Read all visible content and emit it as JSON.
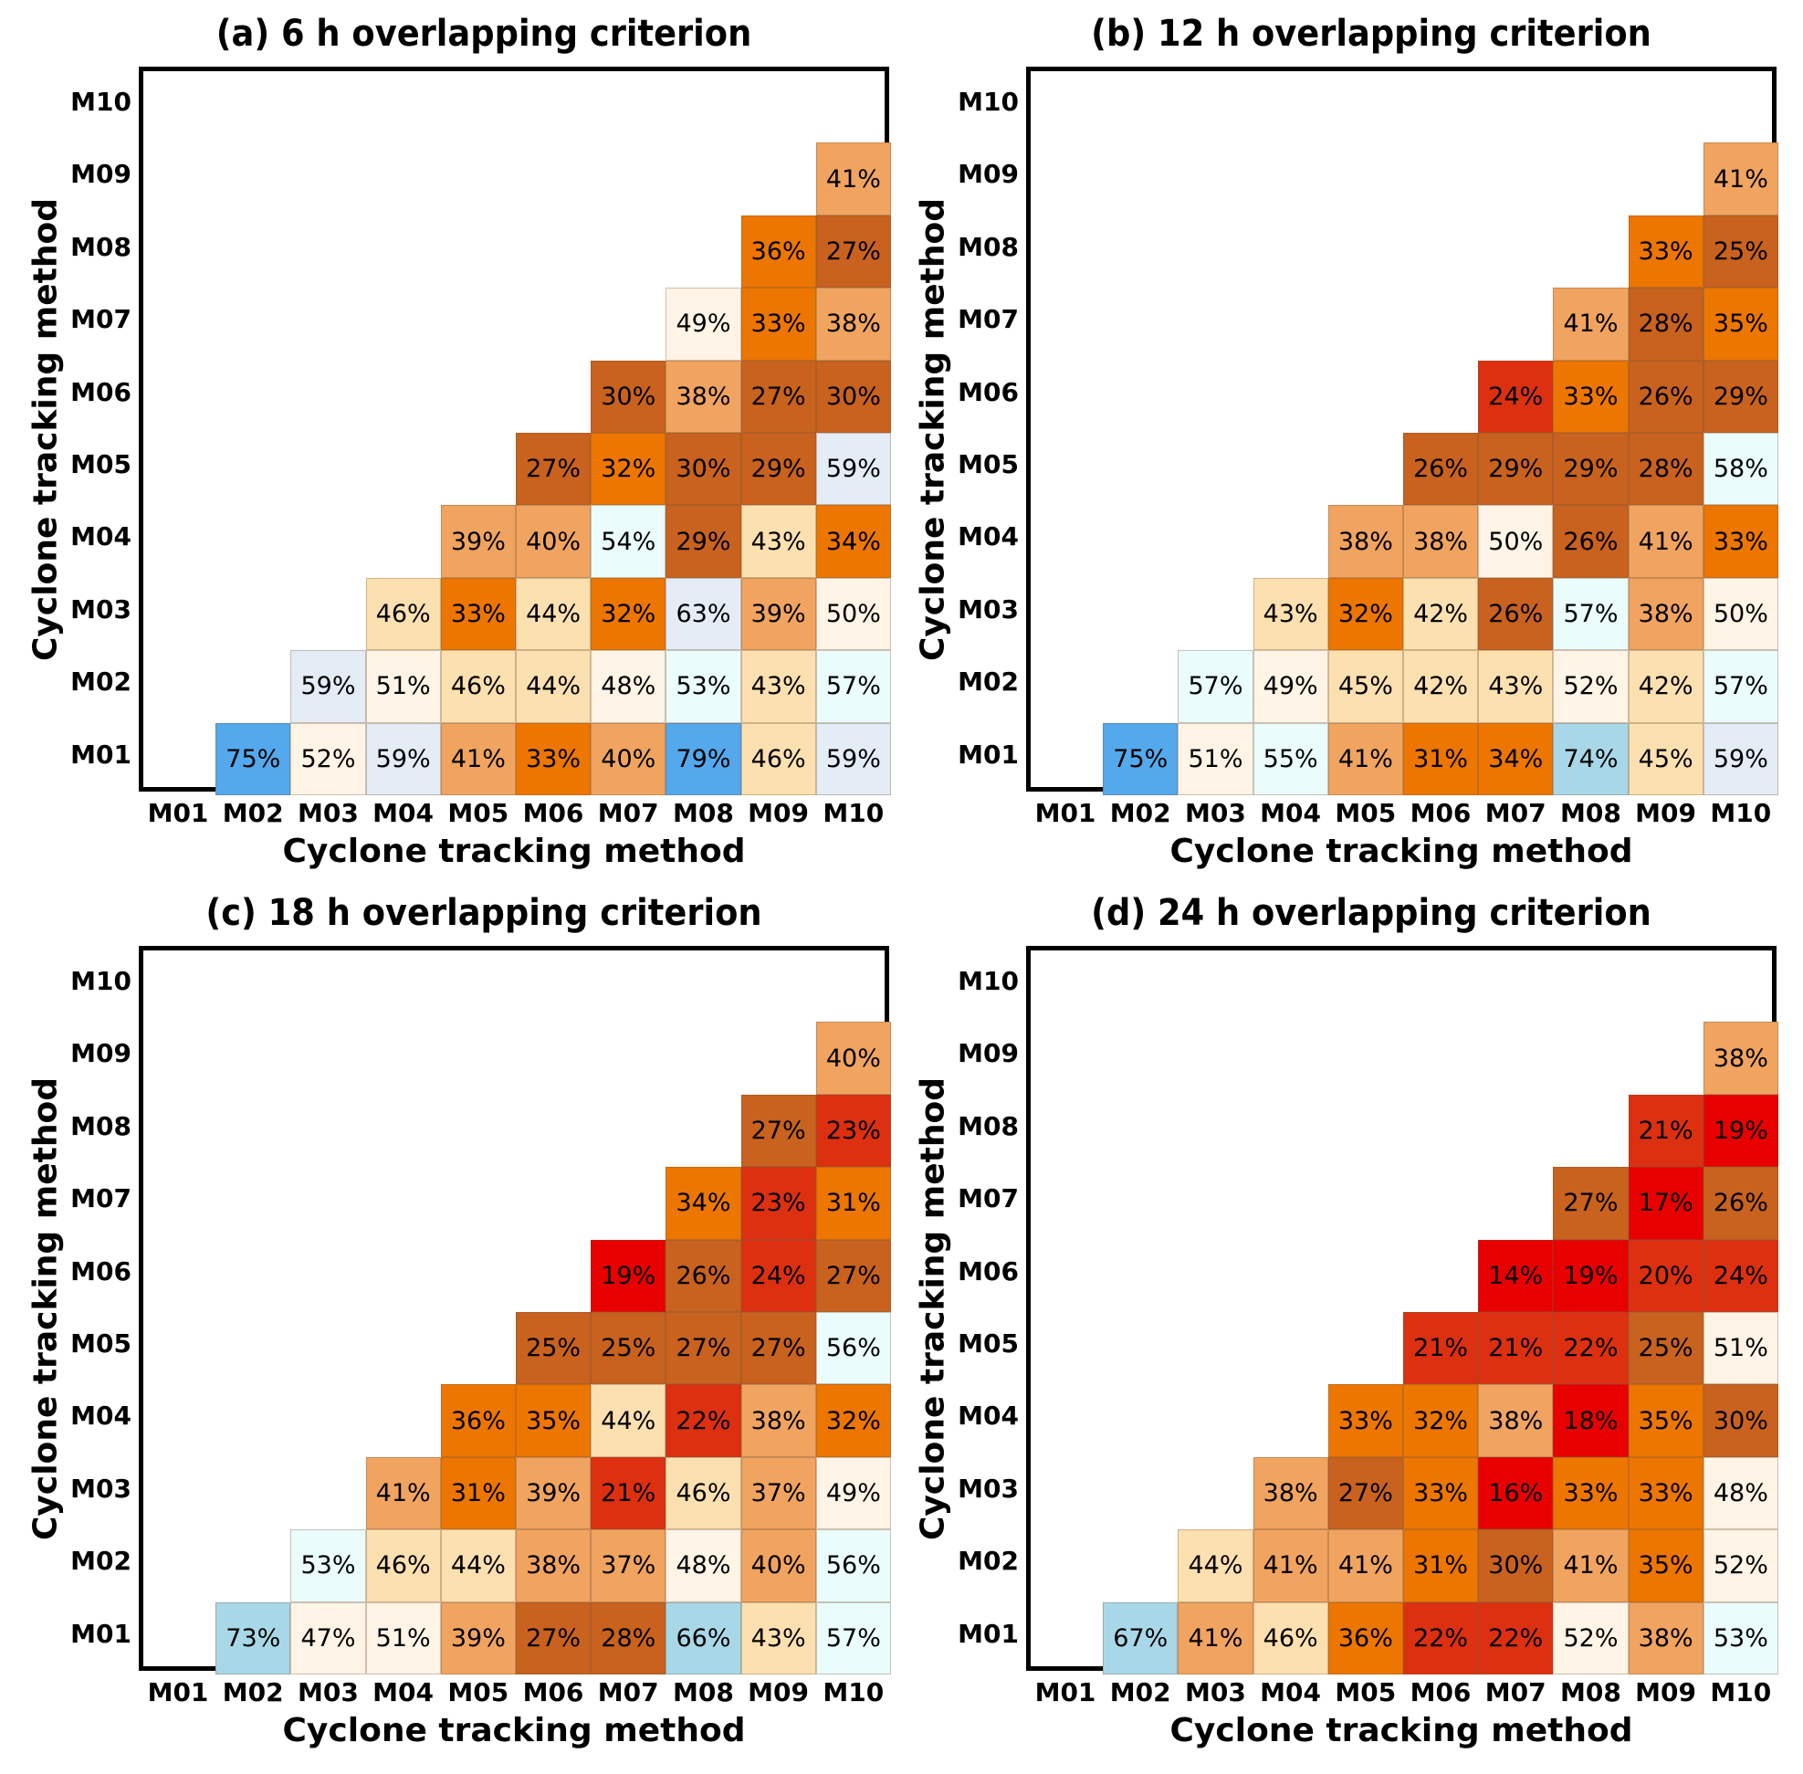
{
  "chart_data": [
    {
      "type": "heatmap",
      "title": "(a) 6 h  overlapping criterion",
      "xlabel": "Cyclone tracking method",
      "ylabel": "Cyclone tracking method",
      "x_categories": [
        "M01",
        "M02",
        "M03",
        "M04",
        "M05",
        "M06",
        "M07",
        "M08",
        "M09",
        "M10"
      ],
      "y_categories": [
        "M01",
        "M02",
        "M03",
        "M04",
        "M05",
        "M06",
        "M07",
        "M08",
        "M09",
        "M10"
      ],
      "rows": {
        "M01": [
          null,
          75,
          52,
          59,
          41,
          33,
          40,
          79,
          46,
          59
        ],
        "M02": [
          null,
          null,
          59,
          51,
          46,
          44,
          48,
          53,
          43,
          57
        ],
        "M03": [
          null,
          null,
          null,
          46,
          33,
          44,
          32,
          63,
          39,
          50
        ],
        "M04": [
          null,
          null,
          null,
          null,
          39,
          40,
          54,
          29,
          43,
          34
        ],
        "M05": [
          null,
          null,
          null,
          null,
          null,
          27,
          32,
          30,
          29,
          59
        ],
        "M06": [
          null,
          null,
          null,
          null,
          null,
          null,
          30,
          38,
          27,
          30
        ],
        "M07": [
          null,
          null,
          null,
          null,
          null,
          null,
          null,
          49,
          33,
          38
        ],
        "M08": [
          null,
          null,
          null,
          null,
          null,
          null,
          null,
          null,
          36,
          27
        ],
        "M09": [
          null,
          null,
          null,
          null,
          null,
          null,
          null,
          null,
          null,
          41
        ],
        "M10": [
          null,
          null,
          null,
          null,
          null,
          null,
          null,
          null,
          null,
          null
        ]
      },
      "value_unit": "%"
    },
    {
      "type": "heatmap",
      "title": "(b) 12 h  overlapping criterion",
      "xlabel": "Cyclone tracking method",
      "ylabel": "Cyclone tracking method",
      "x_categories": [
        "M01",
        "M02",
        "M03",
        "M04",
        "M05",
        "M06",
        "M07",
        "M08",
        "M09",
        "M10"
      ],
      "y_categories": [
        "M01",
        "M02",
        "M03",
        "M04",
        "M05",
        "M06",
        "M07",
        "M08",
        "M09",
        "M10"
      ],
      "rows": {
        "M01": [
          null,
          75,
          51,
          55,
          41,
          31,
          34,
          74,
          45,
          59
        ],
        "M02": [
          null,
          null,
          57,
          49,
          45,
          42,
          43,
          52,
          42,
          57
        ],
        "M03": [
          null,
          null,
          null,
          43,
          32,
          42,
          26,
          57,
          38,
          50
        ],
        "M04": [
          null,
          null,
          null,
          null,
          38,
          38,
          50,
          26,
          41,
          33
        ],
        "M05": [
          null,
          null,
          null,
          null,
          null,
          26,
          29,
          29,
          28,
          58
        ],
        "M06": [
          null,
          null,
          null,
          null,
          null,
          null,
          24,
          33,
          26,
          29
        ],
        "M07": [
          null,
          null,
          null,
          null,
          null,
          null,
          null,
          41,
          28,
          35
        ],
        "M08": [
          null,
          null,
          null,
          null,
          null,
          null,
          null,
          null,
          33,
          25
        ],
        "M09": [
          null,
          null,
          null,
          null,
          null,
          null,
          null,
          null,
          null,
          41
        ],
        "M10": [
          null,
          null,
          null,
          null,
          null,
          null,
          null,
          null,
          null,
          null
        ]
      },
      "value_unit": "%"
    },
    {
      "type": "heatmap",
      "title": "(c) 18 h  overlapping criterion",
      "xlabel": "Cyclone tracking method",
      "ylabel": "Cyclone tracking method",
      "x_categories": [
        "M01",
        "M02",
        "M03",
        "M04",
        "M05",
        "M06",
        "M07",
        "M08",
        "M09",
        "M10"
      ],
      "y_categories": [
        "M01",
        "M02",
        "M03",
        "M04",
        "M05",
        "M06",
        "M07",
        "M08",
        "M09",
        "M10"
      ],
      "rows": {
        "M01": [
          null,
          73,
          47,
          51,
          39,
          27,
          28,
          66,
          43,
          57
        ],
        "M02": [
          null,
          null,
          53,
          46,
          44,
          38,
          37,
          48,
          40,
          56
        ],
        "M03": [
          null,
          null,
          null,
          41,
          31,
          39,
          21,
          46,
          37,
          49
        ],
        "M04": [
          null,
          null,
          null,
          null,
          36,
          35,
          44,
          22,
          38,
          32
        ],
        "M05": [
          null,
          null,
          null,
          null,
          null,
          25,
          25,
          27,
          27,
          56
        ],
        "M06": [
          null,
          null,
          null,
          null,
          null,
          null,
          19,
          26,
          24,
          27
        ],
        "M07": [
          null,
          null,
          null,
          null,
          null,
          null,
          null,
          34,
          23,
          31
        ],
        "M08": [
          null,
          null,
          null,
          null,
          null,
          null,
          null,
          null,
          27,
          23
        ],
        "M09": [
          null,
          null,
          null,
          null,
          null,
          null,
          null,
          null,
          null,
          40
        ],
        "M10": [
          null,
          null,
          null,
          null,
          null,
          null,
          null,
          null,
          null,
          null
        ]
      },
      "value_unit": "%"
    },
    {
      "type": "heatmap",
      "title": "(d) 24 h  overlapping criterion",
      "xlabel": "Cyclone tracking method",
      "ylabel": "Cyclone tracking method",
      "x_categories": [
        "M01",
        "M02",
        "M03",
        "M04",
        "M05",
        "M06",
        "M07",
        "M08",
        "M09",
        "M10"
      ],
      "y_categories": [
        "M01",
        "M02",
        "M03",
        "M04",
        "M05",
        "M06",
        "M07",
        "M08",
        "M09",
        "M10"
      ],
      "rows": {
        "M01": [
          null,
          67,
          41,
          46,
          36,
          22,
          22,
          52,
          38,
          53
        ],
        "M02": [
          null,
          null,
          44,
          41,
          41,
          31,
          30,
          41,
          35,
          52
        ],
        "M03": [
          null,
          null,
          null,
          38,
          27,
          33,
          16,
          33,
          33,
          48
        ],
        "M04": [
          null,
          null,
          null,
          null,
          33,
          32,
          38,
          18,
          35,
          30
        ],
        "M05": [
          null,
          null,
          null,
          null,
          null,
          21,
          21,
          22,
          25,
          51
        ],
        "M06": [
          null,
          null,
          null,
          null,
          null,
          null,
          14,
          19,
          20,
          24
        ],
        "M07": [
          null,
          null,
          null,
          null,
          null,
          null,
          null,
          27,
          17,
          26
        ],
        "M08": [
          null,
          null,
          null,
          null,
          null,
          null,
          null,
          null,
          21,
          19
        ],
        "M09": [
          null,
          null,
          null,
          null,
          null,
          null,
          null,
          null,
          null,
          38
        ],
        "M10": [
          null,
          null,
          null,
          null,
          null,
          null,
          null,
          null,
          null,
          null
        ]
      },
      "value_unit": "%"
    }
  ],
  "color_scale": {
    "stops": [
      {
        "max": 19,
        "color": "#e80000"
      },
      {
        "max": 24,
        "color": "#dc3010"
      },
      {
        "max": 30,
        "color": "#c8621e"
      },
      {
        "max": 36,
        "color": "#ec7600"
      },
      {
        "max": 41,
        "color": "#f0a460"
      },
      {
        "max": 46,
        "color": "#fde0b0"
      },
      {
        "max": 52,
        "color": "#fff4e6"
      },
      {
        "max": 58,
        "color": "#eafcfc"
      },
      {
        "max": 63,
        "color": "#e4ecf6"
      },
      {
        "max": 74,
        "color": "#a8d8e8"
      },
      {
        "max": 100,
        "color": "#54a8ec"
      }
    ]
  }
}
